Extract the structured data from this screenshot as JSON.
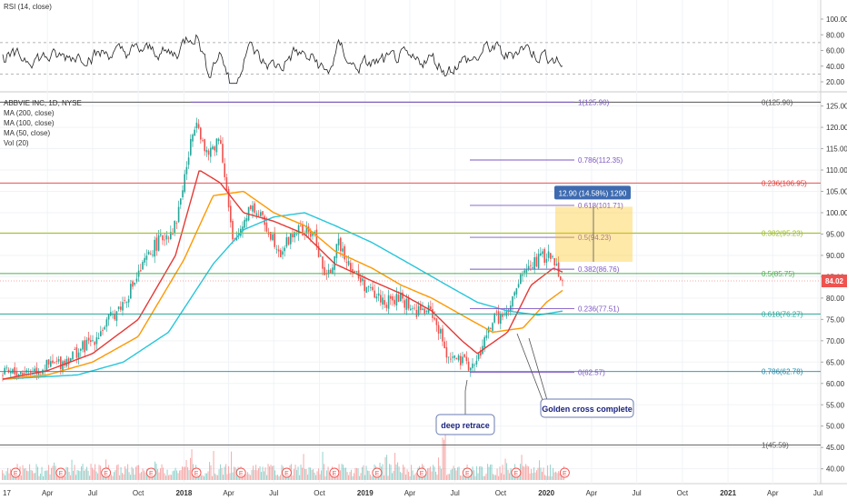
{
  "rsi_panel": {
    "title": "RSI (14, close)",
    "ticks": [
      "100.00",
      "80.00",
      "60.00",
      "40.00",
      "20.00"
    ],
    "tick_values": [
      100,
      80,
      60,
      40,
      20
    ],
    "bands": [
      70,
      30
    ]
  },
  "main_panel": {
    "title": "ABBVIE INC, 1D, NYSE",
    "legend": [
      "MA (200, close)",
      "MA (100, close)",
      "MA (50, close)",
      "Vol (20)"
    ],
    "price_ticks": [
      "125.00",
      "120.00",
      "115.00",
      "110.00",
      "105.00",
      "100.00",
      "95.00",
      "90.00",
      "85.00",
      "80.00",
      "75.00",
      "70.00",
      "65.00",
      "60.00",
      "55.00",
      "50.00",
      "45.00",
      "40.00"
    ],
    "current_price": "84.02",
    "time_axis": [
      "17",
      "Apr",
      "Jul",
      "Oct",
      "2018",
      "Apr",
      "Jul",
      "Oct",
      "2019",
      "Apr",
      "Jul",
      "Oct",
      "2020",
      "Apr",
      "Jul",
      "Oct",
      "2021",
      "Apr",
      "Jul"
    ]
  },
  "fib_left": [
    {
      "text": "1(125.90)",
      "value": 125.9
    },
    {
      "text": "0.786(112.35)",
      "value": 112.35
    },
    {
      "text": "0.618(101.71)",
      "value": 101.71
    },
    {
      "text": "0.5(94.23)",
      "value": 94.23
    },
    {
      "text": "0.382(86.76)",
      "value": 86.76
    },
    {
      "text": "0.236(77.51)",
      "value": 77.51
    },
    {
      "text": "0(62.57)",
      "value": 62.57
    }
  ],
  "fib_right": [
    {
      "text": "0(125.90)",
      "value": 125.9,
      "color": "#555555"
    },
    {
      "text": "0.236(106.95)",
      "value": 106.95,
      "color": "#e53935"
    },
    {
      "text": "0.382(95.23)",
      "value": 95.23,
      "color": "#9abc1f"
    },
    {
      "text": "0.5(85.75)",
      "value": 85.75,
      "color": "#4caf50"
    },
    {
      "text": "0.618(76.27)",
      "value": 76.27,
      "color": "#26a69a"
    },
    {
      "text": "0.786(62.78)",
      "value": 62.78,
      "color": "#1e88a8"
    },
    {
      "text": "1(45.59)",
      "value": 45.59,
      "color": "#555555"
    }
  ],
  "measure_box": {
    "label": "12.90 (14.58%) 1290",
    "low": 88.5,
    "high": 101.4
  },
  "annotations": {
    "deep_retrace": "deep retrace",
    "golden_cross": "Golden cross complete"
  },
  "colors": {
    "ma200": "#26c6da",
    "ma100": "#ff9800",
    "ma50": "#e53935",
    "up": "#26a69a",
    "down": "#ef5350",
    "price_tag": "#ef5350"
  },
  "chart_data": {
    "type": "line",
    "title": "ABBVIE INC, 1D, NYSE",
    "y_range": [
      38,
      128
    ],
    "x_range": [
      "2017-01-01",
      "2021-09-01"
    ],
    "series": [
      {
        "name": "Price (close, approx.)",
        "points": [
          [
            "2017-01-01",
            62
          ],
          [
            "2017-03-01",
            63
          ],
          [
            "2017-05-01",
            65
          ],
          [
            "2017-07-01",
            70
          ],
          [
            "2017-09-01",
            79
          ],
          [
            "2017-11-01",
            92
          ],
          [
            "2017-12-15",
            97
          ],
          [
            "2018-01-26",
            123
          ],
          [
            "2018-02-15",
            113
          ],
          [
            "2018-03-15",
            118
          ],
          [
            "2018-04-10",
            92
          ],
          [
            "2018-05-15",
            102
          ],
          [
            "2018-06-10",
            98
          ],
          [
            "2018-07-15",
            91
          ],
          [
            "2018-08-15",
            96
          ],
          [
            "2018-09-20",
            95
          ],
          [
            "2018-10-15",
            84
          ],
          [
            "2018-11-10",
            93
          ],
          [
            "2018-12-10",
            86
          ],
          [
            "2019-01-15",
            81
          ],
          [
            "2019-02-15",
            79
          ],
          [
            "2019-03-15",
            80
          ],
          [
            "2019-04-10",
            77
          ],
          [
            "2019-05-15",
            77
          ],
          [
            "2019-06-15",
            67
          ],
          [
            "2019-07-10",
            65
          ],
          [
            "2019-08-10",
            64
          ],
          [
            "2019-09-15",
            75
          ],
          [
            "2019-10-15",
            76
          ],
          [
            "2019-11-15",
            86
          ],
          [
            "2019-12-15",
            89
          ],
          [
            "2020-01-05",
            90
          ],
          [
            "2020-01-20",
            88
          ],
          [
            "2020-02-05",
            84
          ]
        ]
      },
      {
        "name": "MA (50, close)",
        "points": [
          [
            "2017-01-01",
            61
          ],
          [
            "2017-04-01",
            63
          ],
          [
            "2017-07-01",
            67
          ],
          [
            "2017-10-01",
            75
          ],
          [
            "2017-12-15",
            90
          ],
          [
            "2018-02-01",
            110
          ],
          [
            "2018-03-15",
            107
          ],
          [
            "2018-05-01",
            100
          ],
          [
            "2018-07-01",
            98
          ],
          [
            "2018-09-01",
            95
          ],
          [
            "2018-11-01",
            88
          ],
          [
            "2019-01-15",
            84
          ],
          [
            "2019-03-15",
            81
          ],
          [
            "2019-05-15",
            77
          ],
          [
            "2019-07-15",
            70
          ],
          [
            "2019-08-15",
            67
          ],
          [
            "2019-10-15",
            72
          ],
          [
            "2019-12-01",
            83
          ],
          [
            "2020-01-15",
            87
          ],
          [
            "2020-02-05",
            86
          ]
        ]
      },
      {
        "name": "MA (100, close)",
        "points": [
          [
            "2017-01-01",
            61
          ],
          [
            "2017-04-01",
            62
          ],
          [
            "2017-07-01",
            65
          ],
          [
            "2017-10-01",
            71
          ],
          [
            "2018-01-01",
            89
          ],
          [
            "2018-03-01",
            104
          ],
          [
            "2018-05-01",
            105
          ],
          [
            "2018-07-01",
            100
          ],
          [
            "2018-09-01",
            97
          ],
          [
            "2018-11-01",
            91
          ],
          [
            "2019-01-15",
            87
          ],
          [
            "2019-03-15",
            83
          ],
          [
            "2019-05-15",
            80
          ],
          [
            "2019-07-15",
            76
          ],
          [
            "2019-09-15",
            72
          ],
          [
            "2019-11-15",
            73
          ],
          [
            "2020-01-01",
            79
          ],
          [
            "2020-02-05",
            82
          ]
        ]
      },
      {
        "name": "MA (200, close)",
        "points": [
          [
            "2017-01-01",
            61
          ],
          [
            "2017-06-01",
            62
          ],
          [
            "2017-09-01",
            65
          ],
          [
            "2017-12-01",
            72
          ],
          [
            "2018-03-01",
            88
          ],
          [
            "2018-05-01",
            96
          ],
          [
            "2018-07-01",
            99
          ],
          [
            "2018-09-01",
            100
          ],
          [
            "2018-11-01",
            97
          ],
          [
            "2019-01-15",
            93
          ],
          [
            "2019-04-01",
            88
          ],
          [
            "2019-06-15",
            83
          ],
          [
            "2019-08-15",
            79
          ],
          [
            "2019-10-15",
            77
          ],
          [
            "2019-12-15",
            76
          ],
          [
            "2020-02-05",
            77
          ]
        ]
      }
    ]
  }
}
